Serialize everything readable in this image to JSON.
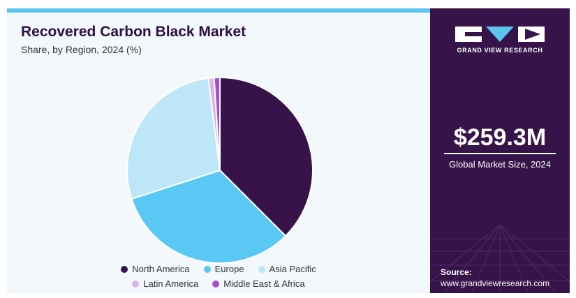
{
  "title": "Recovered Carbon Black Market",
  "subtitle": "Share, by Region, 2024 (%)",
  "chart_data": {
    "type": "pie",
    "title": "Recovered Carbon Black Market",
    "subtitle": "Share, by Region, 2024 (%)",
    "categories": [
      "North America",
      "Europe",
      "Asia Pacific",
      "Latin America",
      "Middle East & Africa"
    ],
    "values": [
      37.5,
      32.5,
      28.0,
      1.0,
      1.0
    ],
    "colors": [
      "#361449",
      "#5ac8f5",
      "#bde7f8",
      "#d9b3ec",
      "#a14fd0"
    ],
    "start_angle": "12 o'clock",
    "direction": "clockwise",
    "legend_position": "bottom"
  },
  "sidebar": {
    "brand": "GRAND VIEW RESEARCH",
    "market_size": "$259.3M",
    "market_size_label": "Global Market Size, 2024",
    "source_label": "Source:",
    "source_url": "www.grandviewresearch.com"
  }
}
